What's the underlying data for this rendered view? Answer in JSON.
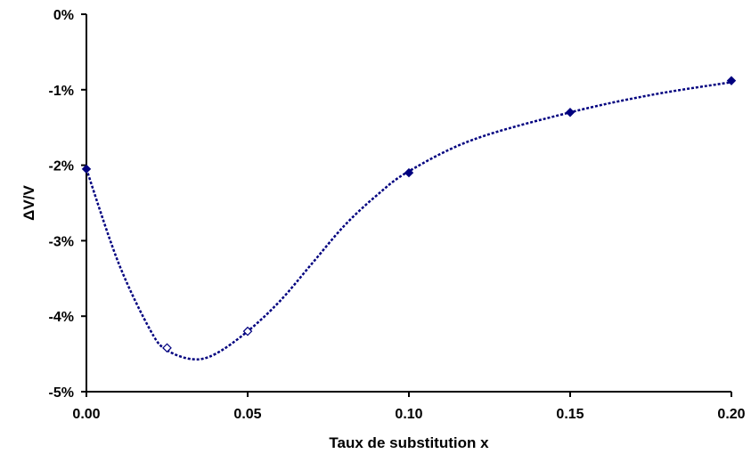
{
  "chart_data": {
    "type": "scatter",
    "title": "",
    "xlabel": "Taux de substitution x",
    "ylabel": "ΔV/V",
    "xlim": [
      0.0,
      0.2
    ],
    "ylim": [
      -5,
      0
    ],
    "x_ticks": [
      {
        "value": 0.0,
        "label": "0.00"
      },
      {
        "value": 0.05,
        "label": "0.05"
      },
      {
        "value": 0.1,
        "label": "0.10"
      },
      {
        "value": 0.15,
        "label": "0.15"
      },
      {
        "value": 0.2,
        "label": "0.20"
      }
    ],
    "y_ticks": [
      {
        "value": 0,
        "label": "0%"
      },
      {
        "value": -1,
        "label": "-1%"
      },
      {
        "value": -2,
        "label": "-2%"
      },
      {
        "value": -3,
        "label": "-3%"
      },
      {
        "value": -4,
        "label": "-4%"
      },
      {
        "value": -5,
        "label": "-5%"
      }
    ],
    "grid": false,
    "legend": "none",
    "series": [
      {
        "marker": "filled-diamond",
        "color": "#00007f",
        "points": [
          {
            "x": 0.0,
            "y": -2.05
          },
          {
            "x": 0.1,
            "y": -2.1
          },
          {
            "x": 0.15,
            "y": -1.3
          },
          {
            "x": 0.2,
            "y": -0.88
          }
        ]
      },
      {
        "marker": "open-diamond",
        "color": "#00007f",
        "points": [
          {
            "x": 0.025,
            "y": -4.42
          },
          {
            "x": 0.05,
            "y": -4.2
          }
        ]
      }
    ],
    "fit_curve": {
      "style": "dotted",
      "color": "#00007f",
      "points": [
        {
          "x": 0.0,
          "y": -2.05
        },
        {
          "x": 0.01,
          "y": -3.3
        },
        {
          "x": 0.02,
          "y": -4.2
        },
        {
          "x": 0.025,
          "y": -4.45
        },
        {
          "x": 0.033,
          "y": -4.57
        },
        {
          "x": 0.04,
          "y": -4.5
        },
        {
          "x": 0.05,
          "y": -4.2
        },
        {
          "x": 0.06,
          "y": -3.8
        },
        {
          "x": 0.07,
          "y": -3.3
        },
        {
          "x": 0.08,
          "y": -2.8
        },
        {
          "x": 0.09,
          "y": -2.4
        },
        {
          "x": 0.1,
          "y": -2.08
        },
        {
          "x": 0.12,
          "y": -1.66
        },
        {
          "x": 0.15,
          "y": -1.3
        },
        {
          "x": 0.175,
          "y": -1.07
        },
        {
          "x": 0.2,
          "y": -0.9
        }
      ]
    }
  }
}
